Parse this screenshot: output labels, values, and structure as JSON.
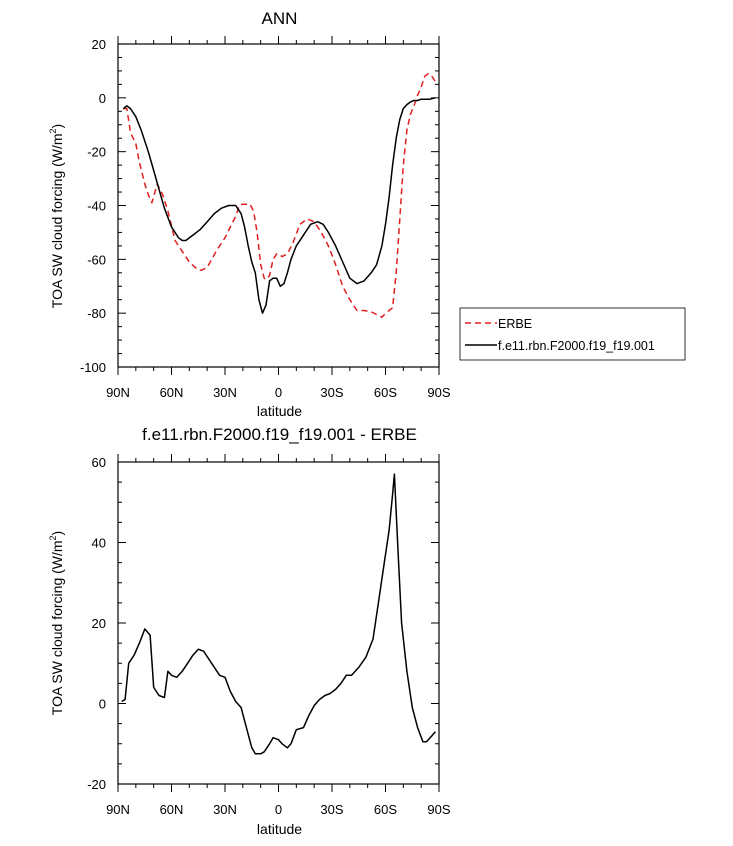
{
  "chart_data": [
    {
      "type": "line",
      "title": "ANN",
      "xlabel": "latitude",
      "ylabel": "TOA SW cloud forcing (W/m",
      "ylabel_sup": "2",
      "ylabel_close": ")",
      "xlim": [
        90,
        -90
      ],
      "ylim": [
        -100,
        20
      ],
      "xticks": [
        90,
        60,
        30,
        0,
        -30,
        -60,
        -90
      ],
      "xtick_labels": [
        "90N",
        "60N",
        "30N",
        "0",
        "30S",
        "60S",
        "90S"
      ],
      "yticks": [
        -100,
        -80,
        -60,
        -40,
        -20,
        0,
        20
      ],
      "ytick_labels": [
        "-100",
        "-80",
        "-60",
        "-40",
        "-20",
        "0",
        "20"
      ],
      "legend": {
        "position": "right",
        "entries": [
          "ERBE",
          "f.e11.rbn.F2000.f19_f19.001"
        ]
      },
      "series": [
        {
          "name": "ERBE",
          "color": "#e02020",
          "dash": "dashed",
          "x": [
            87,
            85,
            83,
            80,
            78,
            75,
            73,
            71,
            68,
            65,
            62,
            58,
            55,
            50,
            45,
            43,
            40,
            35,
            30,
            27,
            24,
            22,
            20,
            18,
            16,
            14,
            12,
            10,
            8,
            7,
            5,
            3,
            1,
            0,
            -2,
            -5,
            -8,
            -12,
            -16,
            -20,
            -24,
            -28,
            -32,
            -36,
            -40,
            -44,
            -48,
            -52,
            -55,
            -58,
            -60,
            -62,
            -64,
            -66,
            -68,
            -70,
            -72,
            -74,
            -76,
            -78,
            -80,
            -82,
            -84,
            -86,
            -88
          ],
          "y": [
            -4,
            -4,
            -13,
            -17,
            -24,
            -32,
            -36,
            -39,
            -32,
            -36,
            -42,
            -53,
            -56,
            -61,
            -64,
            -64,
            -63,
            -57,
            -52,
            -48,
            -44,
            -40,
            -39.5,
            -39.5,
            -39.5,
            -42,
            -50,
            -62,
            -67,
            -67.5,
            -66,
            -60,
            -58,
            -58,
            -59,
            -58,
            -54,
            -47,
            -45,
            -46,
            -50,
            -55,
            -62,
            -70,
            -75,
            -79,
            -79,
            -79.5,
            -80.5,
            -81.5,
            -80,
            -79,
            -78,
            -65,
            -45,
            -25,
            -12,
            -6,
            -3,
            1,
            4,
            8,
            9,
            8,
            6
          ]
        },
        {
          "name": "f.e11.rbn.F2000.f19_f19.001",
          "color": "#000000",
          "dash": "solid",
          "x": [
            87,
            85,
            83,
            80,
            77,
            73,
            70,
            67,
            64,
            60,
            56,
            54,
            52,
            48,
            44,
            40,
            36,
            32,
            28,
            24,
            21,
            19,
            17,
            15,
            13,
            11,
            9,
            7,
            5,
            3,
            1,
            -1,
            -3,
            -5,
            -7,
            -10,
            -14,
            -18,
            -22,
            -25,
            -28,
            -32,
            -36,
            -40,
            -44,
            -48,
            -52,
            -55,
            -58,
            -60,
            -62,
            -64,
            -66,
            -68,
            -70,
            -72,
            -74,
            -76,
            -78,
            -80,
            -82,
            -85,
            -88
          ],
          "y": [
            -4,
            -3,
            -4,
            -7,
            -12,
            -20,
            -27,
            -34,
            -41,
            -48,
            -52,
            -53,
            -53,
            -51,
            -49,
            -46,
            -43,
            -41,
            -40,
            -40,
            -43,
            -48,
            -55,
            -61,
            -65,
            -75,
            -80,
            -77,
            -68,
            -67,
            -67,
            -70,
            -69,
            -65,
            -60,
            -55,
            -51,
            -47,
            -46,
            -47,
            -50,
            -55,
            -61,
            -67,
            -69,
            -68,
            -65,
            -62,
            -55,
            -47,
            -37,
            -25,
            -15,
            -8,
            -4,
            -2.5,
            -1.5,
            -1,
            -1,
            -0.5,
            -0.5,
            -0.5,
            0
          ]
        }
      ]
    },
    {
      "type": "line",
      "title": "f.e11.rbn.F2000.f19_f19.001 - ERBE",
      "xlabel": "latitude",
      "ylabel": "TOA SW cloud forcing (W/m",
      "ylabel_sup": "2",
      "ylabel_close": ")",
      "xlim": [
        90,
        -90
      ],
      "ylim": [
        -20,
        60
      ],
      "xticks": [
        90,
        60,
        30,
        0,
        -30,
        -60,
        -90
      ],
      "xtick_labels": [
        "90N",
        "60N",
        "30N",
        "0",
        "30S",
        "60S",
        "90S"
      ],
      "yticks": [
        -20,
        0,
        20,
        40,
        60
      ],
      "ytick_labels": [
        "-20",
        "0",
        "20",
        "40",
        "60"
      ],
      "series": [
        {
          "name": "f.e11.rbn.F2000.f19_f19.001 - ERBE",
          "color": "#000000",
          "dash": "solid",
          "x": [
            88,
            86,
            84,
            81,
            78,
            75,
            72,
            70,
            67,
            64,
            62,
            60,
            57,
            54,
            51,
            48,
            45,
            42,
            39,
            36,
            33,
            30,
            27,
            24,
            21,
            18,
            15,
            13,
            10,
            8,
            5,
            3,
            0,
            -2,
            -5,
            -7,
            -10,
            -14,
            -17,
            -20,
            -23,
            -26,
            -29,
            -32,
            -35,
            -38,
            -41,
            -45,
            -49,
            -53,
            -56,
            -59,
            -62,
            -64,
            -65,
            -67,
            -69,
            -72,
            -75,
            -78,
            -81,
            -83,
            -86,
            -88
          ],
          "y": [
            0.5,
            1,
            10,
            12,
            15,
            18.5,
            17,
            4,
            2,
            1.5,
            8,
            7,
            6.5,
            8,
            10,
            12,
            13.5,
            13,
            11,
            9,
            7,
            6.5,
            3,
            0.5,
            -1,
            -6,
            -11,
            -12.5,
            -12.5,
            -12,
            -10,
            -8.5,
            -9,
            -10,
            -11,
            -10,
            -6.5,
            -6,
            -3,
            -0.5,
            1,
            2,
            2.5,
            3.5,
            5,
            7,
            7,
            9,
            11.5,
            16,
            25,
            34,
            43,
            52,
            57,
            38,
            20,
            8,
            -1,
            -6,
            -9.5,
            -9.5,
            -8,
            -7
          ]
        }
      ]
    }
  ]
}
